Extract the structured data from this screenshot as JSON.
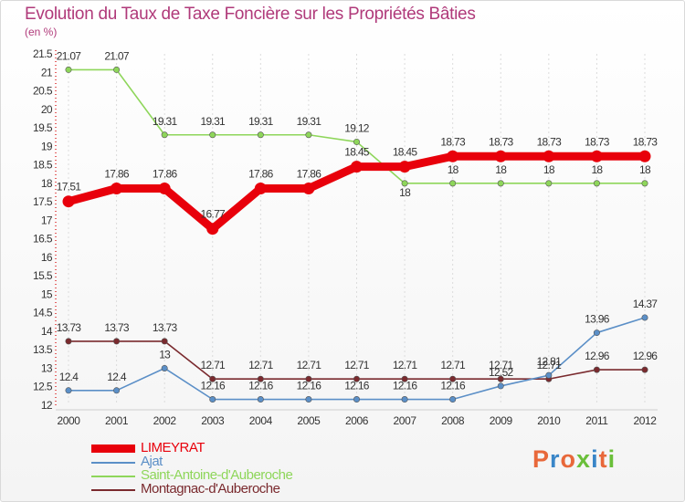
{
  "title": "Evolution du Taux de Taxe Foncière sur les Propriétés Bâties",
  "unit_label": "(en %)",
  "logo": {
    "text": "Proxiti",
    "colors": [
      "#e8683a",
      "#3a86c8",
      "#e8683a",
      "#6abf3a",
      "#3a86c8",
      "#e8683a",
      "#6abf3a"
    ]
  },
  "chart_data": {
    "type": "line",
    "title": "Evolution du Taux de Taxe Foncière sur les Propriétés Bâties",
    "ylabel": "(en %)",
    "xlabel": "",
    "ylim": [
      12,
      21.5
    ],
    "yticks": [
      "12",
      "12.5",
      "13",
      "13.5",
      "14",
      "14.5",
      "15",
      "15.5",
      "16",
      "16.5",
      "17",
      "17.5",
      "18",
      "18.5",
      "19",
      "19.5",
      "20",
      "20.5",
      "21",
      "21.5"
    ],
    "categories": [
      "2000",
      "2001",
      "2002",
      "2003",
      "2004",
      "2005",
      "2006",
      "2007",
      "2008",
      "2009",
      "2010",
      "2011",
      "2012"
    ],
    "series": [
      {
        "name": "LIMEYRAT",
        "color": "#e8000b",
        "values": [
          17.51,
          17.86,
          17.86,
          16.77,
          17.86,
          17.86,
          18.45,
          18.45,
          18.73,
          18.73,
          18.73,
          18.73,
          18.73
        ],
        "labels": [
          "17.51",
          "17.86",
          "17.86",
          "16.77",
          "17.86",
          "17.86",
          "18.45",
          "18.45",
          "18.73",
          "18.73",
          "18.73",
          "18.73",
          "18.73"
        ]
      },
      {
        "name": "Ajat",
        "color": "#5b8fc7",
        "values": [
          12.4,
          12.4,
          13,
          12.16,
          12.16,
          12.16,
          12.16,
          12.16,
          12.16,
          12.52,
          12.81,
          13.96,
          14.37
        ],
        "labels": [
          "12.4",
          "12.4",
          "13",
          "12.16",
          "12.16",
          "12.16",
          "12.16",
          "12.16",
          "12.16",
          "12.52",
          "12.81",
          "13.96",
          "14.37"
        ]
      },
      {
        "name": "Saint-Antoine-d'Auberoche",
        "color": "#8ed65a",
        "values": [
          21.07,
          21.07,
          19.31,
          19.31,
          19.31,
          19.31,
          19.12,
          18,
          18,
          18,
          18,
          18,
          18
        ],
        "labels": [
          "21.07",
          "21.07",
          "19.31",
          "19.31",
          "19.31",
          "19.31",
          "19.12",
          "18",
          "18",
          "18",
          "18",
          "18",
          "18"
        ]
      },
      {
        "name": "Montagnac-d'Auberoche",
        "color": "#7a2a2e",
        "values": [
          13.73,
          13.73,
          13.73,
          12.71,
          12.71,
          12.71,
          12.71,
          12.71,
          12.71,
          12.71,
          12.71,
          12.96,
          12.96
        ],
        "labels": [
          "13.73",
          "13.73",
          "13.73",
          "12.71",
          "12.71",
          "12.71",
          "12.71",
          "12.71",
          "12.71",
          "12.71",
          "12.71",
          "12.96",
          "12.96"
        ]
      }
    ]
  }
}
